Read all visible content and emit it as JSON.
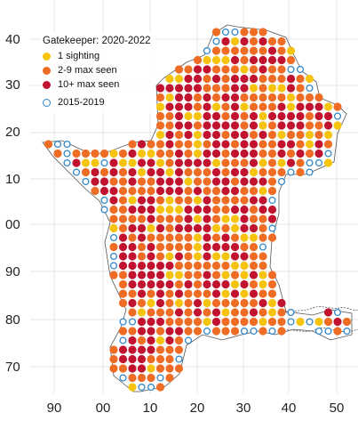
{
  "map": {
    "legend": {
      "title": "Gatekeeper:  2020-2022",
      "items": [
        {
          "label": "1 sighting",
          "color": "#f6c40f",
          "style": "filled"
        },
        {
          "label": "2-9 max seen",
          "color": "#ee6c24",
          "style": "filled"
        },
        {
          "label": "10+ max seen",
          "color": "#c1122f",
          "style": "filled"
        },
        {
          "label": "2015-2019",
          "color": "#2f86c8",
          "style": "ring"
        }
      ]
    },
    "y_ticks": [
      "40",
      "30",
      "20",
      "10",
      "00",
      "90",
      "80",
      "70"
    ],
    "x_ticks": [
      "90",
      "00",
      "10",
      "20",
      "30",
      "40",
      "50"
    ],
    "gridline_color": "#e4e4e4"
  }
}
